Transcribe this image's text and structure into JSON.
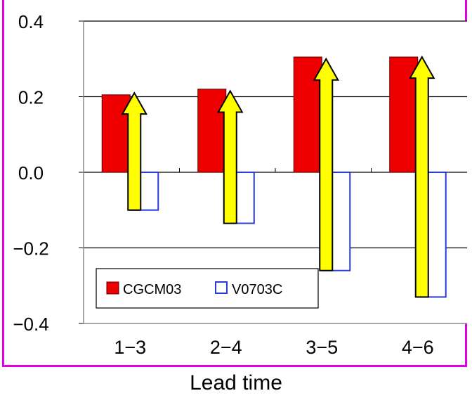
{
  "chart_data": {
    "type": "bar",
    "title": "",
    "xlabel": "Lead time",
    "ylabel": "",
    "categories": [
      "1−3",
      "2−4",
      "3−5",
      "4−6"
    ],
    "series": [
      {
        "name": "CGCM03",
        "values": [
          0.205,
          0.22,
          0.305,
          0.305
        ],
        "color": "#ee0000"
      },
      {
        "name": "V0703C",
        "values": [
          -0.1,
          -0.135,
          -0.26,
          -0.33
        ],
        "color": "#2b3bd8"
      }
    ],
    "arrows": [
      {
        "from": -0.1,
        "to": 0.21
      },
      {
        "from": -0.135,
        "to": 0.215
      },
      {
        "from": -0.26,
        "to": 0.3
      },
      {
        "from": -0.33,
        "to": 0.305
      }
    ],
    "arrow_color": "#ffff00",
    "ylim": [
      -0.4,
      0.4
    ],
    "yticks": [
      "0.4",
      "0.2",
      "0.0",
      "−0.2",
      "−0.4"
    ],
    "ytick_values": [
      0.4,
      0.2,
      0.0,
      -0.2,
      -0.4
    ],
    "grid": true,
    "legend_placement": "bottom-left",
    "frame_color": "#e000e0"
  }
}
